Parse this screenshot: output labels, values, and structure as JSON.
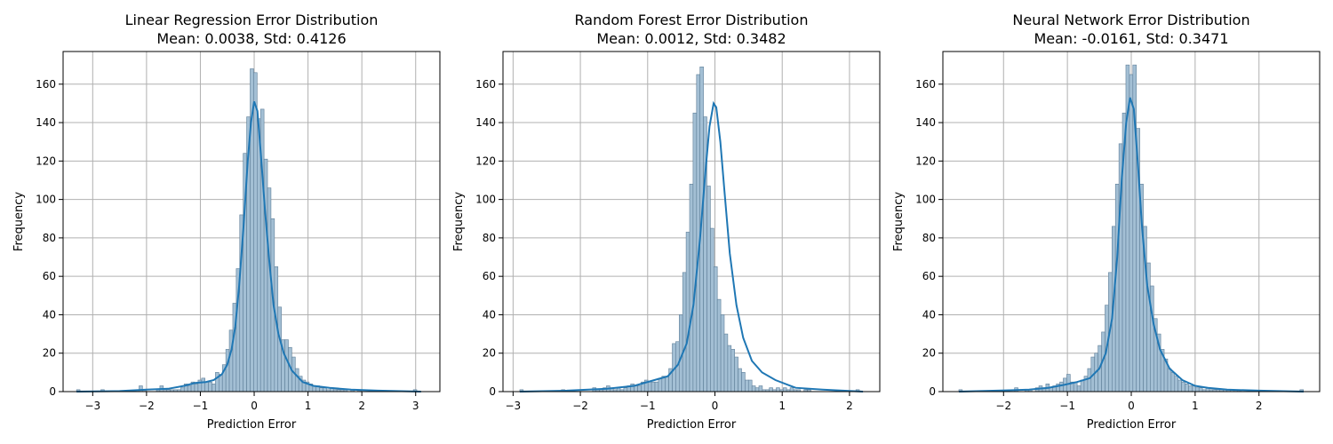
{
  "chart_data": [
    {
      "type": "histogram",
      "title": "Linear Regression Error Distribution",
      "subtitle": "Mean: 0.0038, Std: 0.4126",
      "xlabel": "Prediction Error",
      "ylabel": "Frequency",
      "xlim": [
        -3.55,
        3.45
      ],
      "ylim": [
        0,
        177
      ],
      "xticks": [
        -3,
        -2,
        -1,
        0,
        1,
        2,
        3
      ],
      "yticks": [
        0,
        20,
        40,
        60,
        80,
        100,
        120,
        140,
        160
      ],
      "grid": true,
      "bins": {
        "start": -3.3,
        "width": 0.0645,
        "counts": [
          1,
          0,
          0,
          0,
          0,
          0,
          0,
          1,
          0,
          0,
          0,
          0,
          0,
          0,
          0,
          0,
          0,
          1,
          3,
          1,
          0,
          0,
          0,
          1,
          3,
          1,
          1,
          1,
          1,
          1,
          2,
          4,
          3,
          5,
          4,
          6,
          7,
          5,
          5,
          4,
          10,
          9,
          14,
          22,
          32,
          46,
          64,
          92,
          124,
          143,
          168,
          166,
          142,
          147,
          121,
          106,
          90,
          65,
          44,
          27,
          27,
          23,
          18,
          12,
          8,
          6,
          5,
          4,
          3,
          3,
          2,
          2,
          1,
          2,
          1,
          1,
          1,
          1,
          0,
          1,
          0,
          1,
          0,
          0,
          0,
          0,
          0,
          0,
          0,
          0,
          0,
          0,
          0,
          0,
          0,
          0,
          0,
          1,
          0,
          0
        ]
      },
      "kde": {
        "x": [
          -3.3,
          -2.5,
          -2.0,
          -1.6,
          -1.3,
          -1.1,
          -0.9,
          -0.75,
          -0.6,
          -0.5,
          -0.42,
          -0.35,
          -0.28,
          -0.2,
          -0.12,
          -0.06,
          0.0,
          0.06,
          0.12,
          0.2,
          0.28,
          0.36,
          0.45,
          0.55,
          0.7,
          0.9,
          1.1,
          1.4,
          1.8,
          2.3,
          3.1
        ],
        "y": [
          0,
          0.3,
          1,
          1.5,
          3,
          4.5,
          5,
          6,
          9,
          14,
          22,
          34,
          55,
          85,
          120,
          140,
          151,
          146,
          125,
          95,
          68,
          45,
          30,
          20,
          11,
          5,
          3,
          2,
          1,
          0.5,
          0
        ]
      }
    },
    {
      "type": "histogram",
      "title": "Random Forest Error Distribution",
      "subtitle": "Mean: 0.0012, Std: 0.3482",
      "xlabel": "Prediction Error",
      "ylabel": "Frequency",
      "xlim": [
        -3.15,
        2.45
      ],
      "ylim": [
        0,
        177
      ],
      "xticks": [
        -3,
        -2,
        -1,
        0,
        1,
        2
      ],
      "yticks": [
        0,
        20,
        40,
        60,
        80,
        100,
        120,
        140,
        160
      ],
      "grid": true,
      "bins": {
        "start": -2.9,
        "width": 0.0515,
        "counts": [
          1,
          0,
          0,
          0,
          0,
          0,
          0,
          0,
          0,
          0,
          0,
          0,
          1,
          0,
          0,
          0,
          0,
          0,
          0,
          0,
          0,
          2,
          1,
          1,
          2,
          3,
          2,
          1,
          2,
          1,
          2,
          3,
          4,
          3,
          3,
          5,
          6,
          5,
          5,
          5,
          7,
          8,
          8,
          12,
          25,
          26,
          40,
          62,
          83,
          108,
          145,
          165,
          169,
          143,
          107,
          85,
          65,
          48,
          40,
          30,
          24,
          22,
          18,
          12,
          10,
          6,
          6,
          3,
          2,
          3,
          1,
          1,
          2,
          1,
          2,
          1,
          2,
          1,
          2,
          1,
          1,
          0,
          1,
          1,
          0,
          0,
          0,
          0,
          0,
          0,
          0,
          0,
          0,
          0,
          0,
          0,
          0,
          1
        ]
      },
      "kde": {
        "x": [
          -2.9,
          -2.2,
          -1.6,
          -1.2,
          -0.9,
          -0.7,
          -0.55,
          -0.42,
          -0.32,
          -0.22,
          -0.14,
          -0.08,
          -0.02,
          0.02,
          0.08,
          0.14,
          0.22,
          0.32,
          0.42,
          0.55,
          0.7,
          0.9,
          1.2,
          1.6,
          2.2
        ],
        "y": [
          0,
          0.5,
          1.5,
          3,
          6,
          8,
          14,
          25,
          45,
          80,
          115,
          138,
          150,
          148,
          130,
          105,
          72,
          45,
          28,
          16,
          10,
          6,
          2,
          1,
          0
        ]
      }
    },
    {
      "type": "histogram",
      "title": "Neural Network Error Distribution",
      "subtitle": "Mean: -0.0161, Std: 0.3471",
      "xlabel": "Prediction Error",
      "ylabel": "Frequency",
      "xlim": [
        -2.95,
        2.95
      ],
      "ylim": [
        0,
        177
      ],
      "xticks": [
        -2,
        -1,
        0,
        1,
        2
      ],
      "yticks": [
        0,
        20,
        40,
        60,
        80,
        100,
        120,
        140,
        160
      ],
      "grid": true,
      "bins": {
        "start": -2.7,
        "width": 0.0545,
        "counts": [
          1,
          0,
          0,
          0,
          0,
          0,
          0,
          0,
          0,
          0,
          0,
          0,
          0,
          0,
          0,
          0,
          2,
          0,
          0,
          1,
          1,
          0,
          2,
          3,
          2,
          4,
          2,
          3,
          4,
          5,
          7,
          9,
          5,
          5,
          3,
          6,
          8,
          12,
          18,
          20,
          24,
          31,
          45,
          62,
          86,
          108,
          129,
          145,
          170,
          165,
          170,
          137,
          108,
          86,
          67,
          55,
          38,
          30,
          22,
          17,
          12,
          10,
          8,
          6,
          5,
          4,
          3,
          3,
          2,
          2,
          1,
          2,
          1,
          1,
          1,
          1,
          1,
          1,
          1,
          1,
          1,
          0,
          0,
          0,
          0,
          0,
          0,
          0,
          0,
          0,
          0,
          0,
          0,
          0,
          0,
          0,
          0,
          0,
          1
        ]
      },
      "kde": {
        "x": [
          -2.7,
          -2.1,
          -1.6,
          -1.3,
          -1.05,
          -0.85,
          -0.65,
          -0.5,
          -0.4,
          -0.3,
          -0.22,
          -0.15,
          -0.08,
          -0.02,
          0.04,
          0.1,
          0.17,
          0.25,
          0.35,
          0.45,
          0.6,
          0.8,
          1.0,
          1.2,
          1.5,
          2.0,
          2.7
        ],
        "y": [
          0,
          0.5,
          1,
          2,
          3.5,
          5,
          7,
          12,
          20,
          38,
          70,
          110,
          140,
          153,
          147,
          120,
          85,
          55,
          35,
          22,
          12,
          6,
          3,
          2,
          1,
          0.5,
          0
        ]
      }
    }
  ]
}
